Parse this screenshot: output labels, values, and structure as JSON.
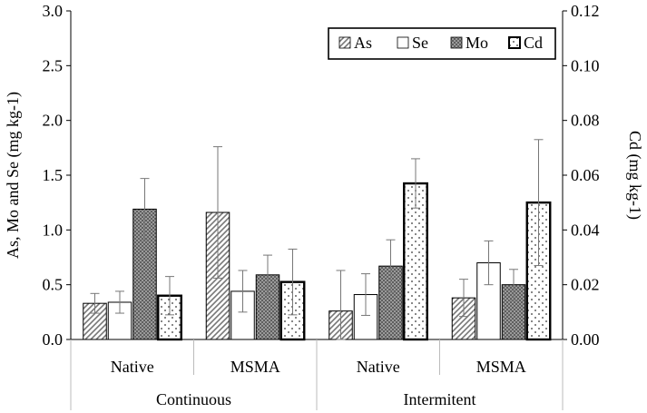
{
  "chart_data": {
    "type": "bar",
    "title": "",
    "groups": [
      "Continuous",
      "Intermitent"
    ],
    "categories": [
      "Native",
      "MSMA",
      "Native",
      "MSMA"
    ],
    "left_axis": {
      "label": "As, Mo and Se (mg kg-1)",
      "ylim": [
        0,
        3.0
      ],
      "ticks": [
        "0.0",
        "0.5",
        "1.0",
        "1.5",
        "2.0",
        "2.5",
        "3.0"
      ]
    },
    "right_axis": {
      "label": "Cd (mg kg-1)",
      "ylim": [
        0,
        0.12
      ],
      "ticks": [
        "0.00",
        "0.02",
        "0.04",
        "0.06",
        "0.08",
        "0.10",
        "0.12"
      ]
    },
    "series": [
      {
        "name": "As",
        "axis": "left",
        "pattern": "hatch",
        "values": [
          0.33,
          1.16,
          0.26,
          0.38
        ],
        "errors": [
          0.09,
          0.6,
          0.37,
          0.17
        ]
      },
      {
        "name": "Se",
        "axis": "left",
        "pattern": "blank",
        "values": [
          0.34,
          0.44,
          0.41,
          0.7
        ],
        "errors": [
          0.1,
          0.19,
          0.19,
          0.2
        ]
      },
      {
        "name": "Mo",
        "axis": "left",
        "pattern": "dense",
        "values": [
          1.19,
          0.59,
          0.67,
          0.5
        ],
        "errors": [
          0.28,
          0.18,
          0.24,
          0.14
        ]
      },
      {
        "name": "Cd",
        "axis": "right",
        "pattern": "dots",
        "values": [
          0.016,
          0.021,
          0.057,
          0.05
        ],
        "errors": [
          0.007,
          0.012,
          0.009,
          0.023
        ]
      }
    ],
    "legend_position": "top-right"
  }
}
